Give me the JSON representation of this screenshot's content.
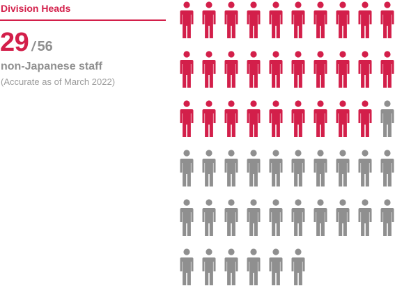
{
  "section_title": "Division Heads",
  "headline": {
    "count": "29",
    "separator": "/",
    "total": "56",
    "label": "non-Japanese staff",
    "note": "(Accurate as of March 2022)"
  },
  "colors": {
    "accent": "#d31f4a",
    "inactive": "#8f8f8f",
    "note_text": "#9b9b9b"
  },
  "chart_data": {
    "type": "pictogram",
    "icon": "person-icon",
    "highlighted": 29,
    "total": 56,
    "columns": 10
  }
}
